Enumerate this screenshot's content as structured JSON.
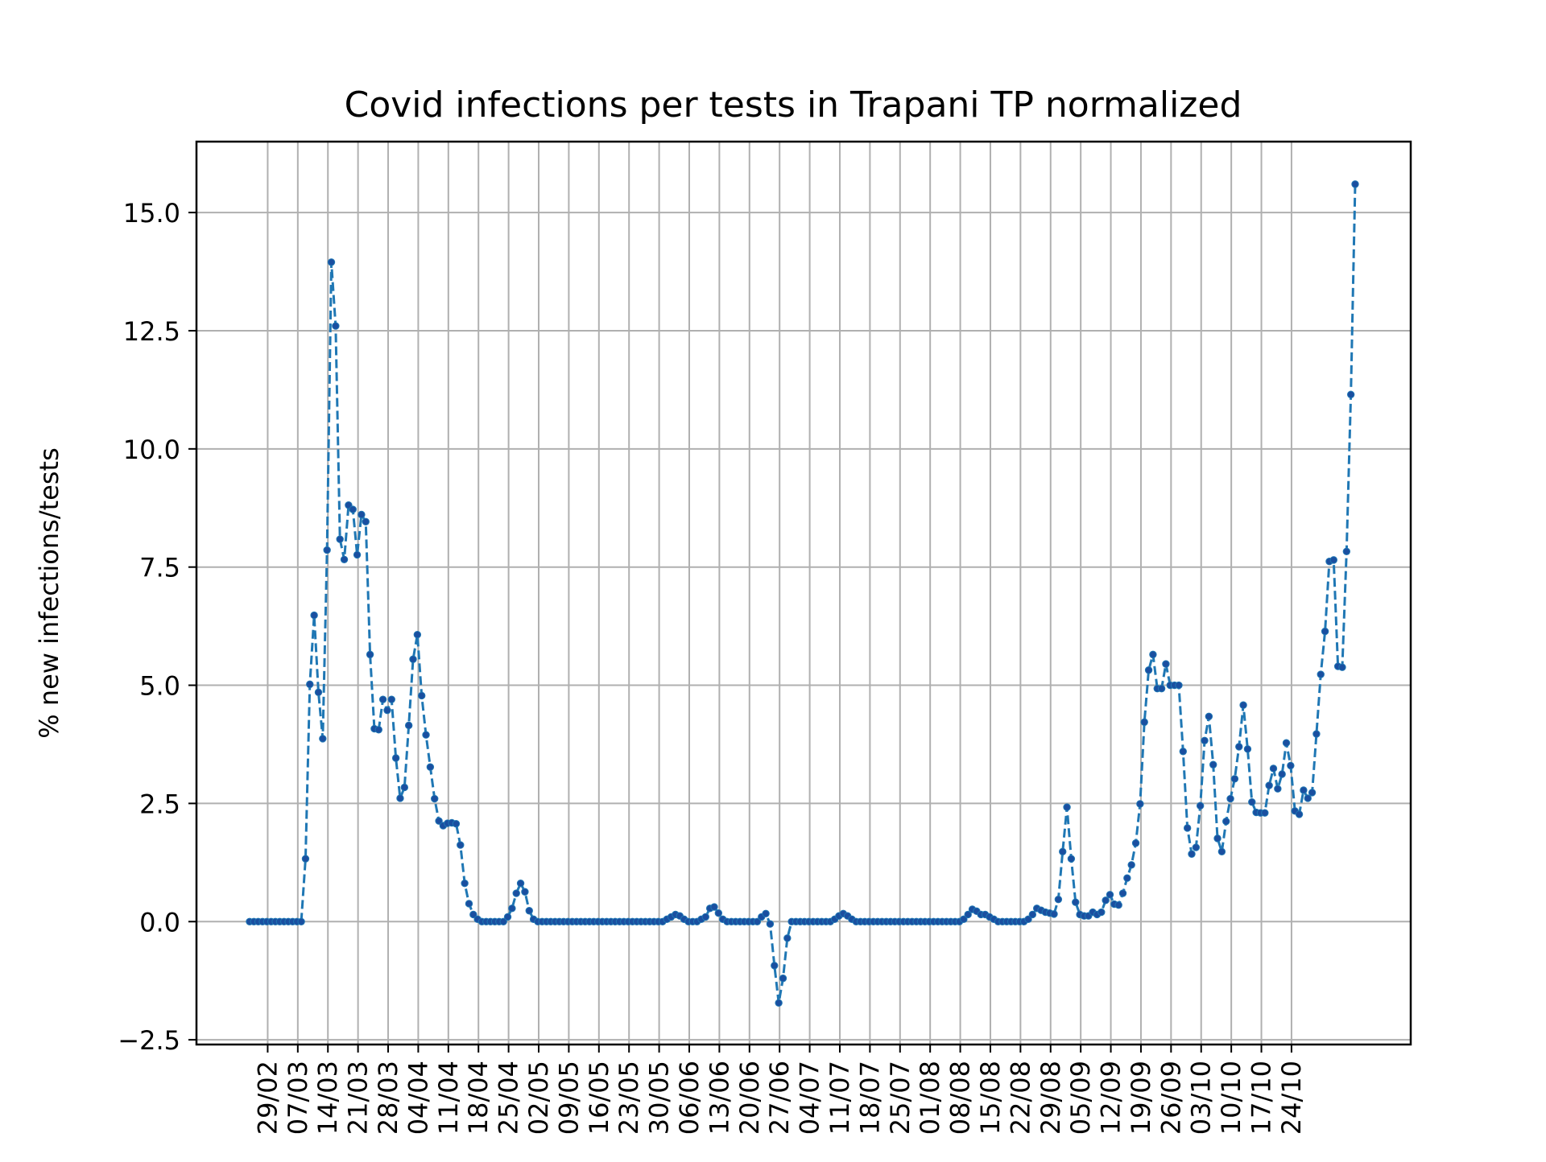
{
  "chart_data": {
    "type": "line",
    "title": "Covid infections per tests in Trapani TP normalized",
    "xlabel": "",
    "ylabel": "% new infections/tests",
    "ylim": [
      -2.6,
      16.5
    ],
    "yticks": [
      -2.5,
      0.0,
      2.5,
      5.0,
      7.5,
      10.0,
      12.5,
      15.0
    ],
    "ytick_labels": [
      "−2.5",
      "0.0",
      "2.5",
      "5.0",
      "7.5",
      "10.0",
      "12.5",
      "15.0"
    ],
    "xticks": [
      "29/02",
      "07/03",
      "14/03",
      "21/03",
      "28/03",
      "04/04",
      "11/04",
      "18/04",
      "25/04",
      "02/05",
      "09/05",
      "16/05",
      "23/05",
      "30/05",
      "06/06",
      "13/06",
      "20/06",
      "27/06",
      "04/07",
      "11/07",
      "18/07",
      "25/07",
      "01/08",
      "08/08",
      "15/08",
      "22/08",
      "29/08",
      "05/09",
      "12/09",
      "19/09",
      "26/09",
      "03/10",
      "10/10",
      "17/10",
      "24/10"
    ],
    "grid": true,
    "series": [
      {
        "color": "#1f77b4",
        "marker_color": "#1a4fa0",
        "line_style": "dashed",
        "x_start": "2020-02-27",
        "x_step_days": 1,
        "values": [
          0,
          0,
          0,
          0,
          0,
          0,
          0,
          0,
          0,
          0,
          0,
          0,
          0,
          1.33,
          5.02,
          6.48,
          4.85,
          3.87,
          7.86,
          13.95,
          12.6,
          8.09,
          7.66,
          8.81,
          8.72,
          7.76,
          8.61,
          8.46,
          5.65,
          4.08,
          4.06,
          4.7,
          4.47,
          4.7,
          3.46,
          2.61,
          2.84,
          4.15,
          5.55,
          6.07,
          4.78,
          3.95,
          3.27,
          2.6,
          2.13,
          2.03,
          2.08,
          2.09,
          2.07,
          1.62,
          0.81,
          0.38,
          0.15,
          0.05,
          0,
          0,
          0,
          0,
          0,
          0,
          0.1,
          0.28,
          0.6,
          0.81,
          0.63,
          0.23,
          0.05,
          0,
          0,
          0,
          0,
          0,
          0,
          0,
          0,
          0,
          0,
          0,
          0,
          0,
          0,
          0,
          0,
          0,
          0,
          0,
          0,
          0,
          0,
          0,
          0,
          0,
          0,
          0,
          0,
          0,
          0,
          0.05,
          0.1,
          0.15,
          0.12,
          0.05,
          0,
          0,
          0,
          0.05,
          0.1,
          0.28,
          0.31,
          0.18,
          0.05,
          0,
          0,
          0,
          0,
          0,
          0,
          0,
          0,
          0.1,
          0.17,
          -0.05,
          -0.93,
          -1.72,
          -1.2,
          -0.35,
          0,
          0,
          0,
          0,
          0,
          0,
          0,
          0,
          0,
          0,
          0.05,
          0.12,
          0.17,
          0.12,
          0.05,
          0,
          0,
          0,
          0,
          0,
          0,
          0,
          0,
          0,
          0,
          0,
          0,
          0,
          0,
          0,
          0,
          0,
          0,
          0,
          0,
          0,
          0,
          0,
          0,
          0,
          0.05,
          0.15,
          0.26,
          0.22,
          0.15,
          0.15,
          0.1,
          0.05,
          0,
          0,
          0,
          0,
          0,
          0,
          0,
          0.05,
          0.15,
          0.28,
          0.24,
          0.2,
          0.18,
          0.16,
          0.47,
          1.48,
          2.42,
          1.33,
          0.41,
          0.15,
          0.12,
          0.12,
          0.2,
          0.15,
          0.2,
          0.45,
          0.57,
          0.37,
          0.35,
          0.6,
          0.92,
          1.2,
          1.66,
          2.49,
          4.22,
          5.32,
          5.65,
          4.93,
          4.93,
          5.45,
          5.0,
          5.0,
          5.0,
          3.6,
          1.98,
          1.43,
          1.57,
          2.45,
          3.83,
          4.34,
          3.32,
          1.76,
          1.48,
          2.12,
          2.6,
          3.02,
          3.7,
          4.58,
          3.65,
          2.53,
          2.31,
          2.3,
          2.3,
          2.88,
          3.24,
          2.81,
          3.12,
          3.78,
          3.3,
          2.34,
          2.27,
          2.78,
          2.61,
          2.73,
          3.97,
          5.23,
          6.14,
          7.62,
          7.65,
          5.4,
          5.38,
          7.83,
          11.15,
          15.6
        ]
      }
    ]
  }
}
